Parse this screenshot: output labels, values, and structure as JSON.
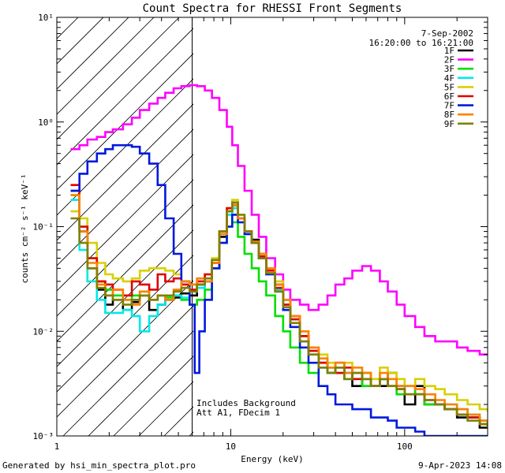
{
  "chart_data": {
    "type": "line",
    "step": true,
    "title": "Count Spectra for RHESSI Front Segments",
    "xlabel": "Energy (keV)",
    "ylabel": "counts cm⁻² s⁻¹ keV⁻¹",
    "xscale": "log",
    "yscale": "log",
    "xlim": [
      1,
      300
    ],
    "ylim": [
      0.001,
      10
    ],
    "x_ticks": [
      {
        "value": 1,
        "label": "1"
      },
      {
        "value": 10,
        "label": "10"
      },
      {
        "value": 100,
        "label": "100"
      }
    ],
    "y_ticks": [
      {
        "value": 10,
        "label": "10¹"
      },
      {
        "value": 1,
        "label": "10⁰"
      },
      {
        "value": 0.1,
        "label": "10⁻¹"
      },
      {
        "value": 0.01,
        "label": "10⁻²"
      },
      {
        "value": 0.001,
        "label": "10⁻³"
      }
    ],
    "date": "7-Sep-2002",
    "time_range": "16:20:00 to 16:21:00",
    "shaded_below_keV": 6,
    "annotations": [
      "Includes Background",
      "Att A1, FDecim  1"
    ],
    "series": [
      {
        "name": "1F",
        "color": "#000000",
        "x": [
          1.2,
          1.35,
          1.5,
          1.7,
          1.9,
          2.1,
          2.4,
          2.7,
          3.0,
          3.4,
          3.8,
          4.2,
          4.7,
          5.2,
          5.8,
          6.4,
          7.1,
          7.8,
          8.6,
          9.5,
          10.2,
          11.0,
          12.0,
          13.2,
          14.5,
          16,
          18,
          20,
          22,
          25,
          28,
          32,
          36,
          40,
          45,
          50,
          57,
          64,
          72,
          80,
          90,
          100,
          115,
          130,
          150,
          170,
          200,
          230,
          270,
          300
        ],
        "y": [
          0.22,
          0.09,
          0.04,
          0.025,
          0.018,
          0.02,
          0.016,
          0.019,
          0.022,
          0.016,
          0.018,
          0.02,
          0.021,
          0.023,
          0.022,
          0.028,
          0.03,
          0.04,
          0.08,
          0.14,
          0.17,
          0.12,
          0.09,
          0.075,
          0.055,
          0.04,
          0.028,
          0.02,
          0.014,
          0.009,
          0.007,
          0.005,
          0.004,
          0.005,
          0.004,
          0.003,
          0.004,
          0.003,
          0.003,
          0.004,
          0.003,
          0.002,
          0.003,
          0.002,
          0.002,
          0.0018,
          0.0015,
          0.0015,
          0.0012,
          0.0012
        ]
      },
      {
        "name": "2F",
        "color": "#ff00ff",
        "x": [
          1.2,
          1.35,
          1.5,
          1.7,
          1.9,
          2.1,
          2.4,
          2.7,
          3.0,
          3.4,
          3.8,
          4.2,
          4.7,
          5.2,
          5.8,
          6.4,
          7.1,
          7.8,
          8.6,
          9.5,
          10.2,
          11.0,
          12.0,
          13.2,
          14.5,
          16,
          18,
          20,
          22,
          25,
          28,
          32,
          36,
          40,
          45,
          50,
          57,
          64,
          72,
          80,
          90,
          100,
          115,
          130,
          150,
          170,
          200,
          230,
          270,
          300
        ],
        "y": [
          0.55,
          0.6,
          0.68,
          0.72,
          0.8,
          0.85,
          0.95,
          1.1,
          1.3,
          1.5,
          1.7,
          1.9,
          2.1,
          2.2,
          2.25,
          2.2,
          2.0,
          1.7,
          1.3,
          0.9,
          0.6,
          0.38,
          0.22,
          0.13,
          0.08,
          0.05,
          0.035,
          0.025,
          0.02,
          0.018,
          0.016,
          0.018,
          0.022,
          0.028,
          0.032,
          0.038,
          0.042,
          0.038,
          0.03,
          0.024,
          0.018,
          0.014,
          0.011,
          0.009,
          0.008,
          0.008,
          0.007,
          0.0065,
          0.006,
          0.006
        ]
      },
      {
        "name": "3F",
        "color": "#00e000",
        "x": [
          1.2,
          1.35,
          1.5,
          1.7,
          1.9,
          2.1,
          2.4,
          2.7,
          3.0,
          3.4,
          3.8,
          4.2,
          4.7,
          5.2,
          5.8,
          6.4,
          7.1,
          7.8,
          8.6,
          9.5,
          10.2,
          11.0,
          12.0,
          13.2,
          14.5,
          16,
          18,
          20,
          22,
          25,
          28,
          32,
          36,
          40,
          45,
          50,
          57,
          64,
          72,
          80,
          90,
          100,
          115,
          130,
          150,
          170,
          200,
          230,
          270,
          300
        ],
        "y": [
          0.2,
          0.1,
          0.05,
          0.03,
          0.025,
          0.022,
          0.02,
          0.022,
          0.024,
          0.02,
          0.022,
          0.021,
          0.022,
          0.02,
          0.018,
          0.02,
          0.025,
          0.04,
          0.07,
          0.1,
          0.11,
          0.08,
          0.055,
          0.04,
          0.03,
          0.022,
          0.014,
          0.01,
          0.007,
          0.005,
          0.004,
          0.0045,
          0.004,
          0.004,
          0.0035,
          0.004,
          0.003,
          0.003,
          0.0035,
          0.003,
          0.0025,
          0.003,
          0.0025,
          0.002,
          0.002,
          0.0018,
          0.0016,
          0.0015,
          0.0013,
          0.0013
        ]
      },
      {
        "name": "4F",
        "color": "#00e8e8",
        "x": [
          1.2,
          1.35,
          1.5,
          1.7,
          1.9,
          2.1,
          2.4,
          2.7,
          3.0,
          3.4,
          3.8,
          4.2,
          4.7,
          5.2,
          5.8,
          6.4,
          7.1,
          7.8,
          8.6,
          9.5,
          10.2,
          11.0,
          12.0,
          13.2,
          14.5,
          16,
          18,
          20,
          22,
          25,
          28,
          32,
          36,
          40,
          45,
          50,
          57,
          64,
          72,
          80,
          90,
          100,
          115,
          130,
          150,
          170,
          200,
          230,
          270,
          300
        ],
        "y": [
          0.18,
          0.06,
          0.03,
          0.02,
          0.015,
          0.015,
          0.016,
          0.014,
          0.01,
          0.014,
          0.018,
          0.02,
          0.022,
          0.021,
          0.024,
          0.026,
          0.03,
          0.045,
          0.085,
          0.13,
          0.15,
          0.11,
          0.085,
          0.07,
          0.05,
          0.035,
          0.025,
          0.018,
          0.013,
          0.008,
          0.006,
          0.005,
          0.004,
          0.0045,
          0.004,
          0.0035,
          0.004,
          0.003,
          0.0035,
          0.003,
          0.003,
          0.0025,
          0.0025,
          0.0022,
          0.002,
          0.002,
          0.0018,
          0.0016,
          0.0014,
          0.0013
        ]
      },
      {
        "name": "5F",
        "color": "#d8d000",
        "x": [
          1.2,
          1.35,
          1.5,
          1.7,
          1.9,
          2.1,
          2.4,
          2.7,
          3.0,
          3.4,
          3.8,
          4.2,
          4.7,
          5.2,
          5.8,
          6.4,
          7.1,
          7.8,
          8.6,
          9.5,
          10.2,
          11.0,
          12.0,
          13.2,
          14.5,
          16,
          18,
          20,
          22,
          25,
          28,
          32,
          36,
          40,
          45,
          50,
          57,
          64,
          72,
          80,
          90,
          100,
          115,
          130,
          150,
          170,
          200,
          230,
          270,
          300
        ],
        "y": [
          0.14,
          0.12,
          0.07,
          0.045,
          0.035,
          0.032,
          0.03,
          0.032,
          0.038,
          0.04,
          0.04,
          0.038,
          0.035,
          0.03,
          0.028,
          0.032,
          0.035,
          0.05,
          0.09,
          0.15,
          0.18,
          0.12,
          0.09,
          0.07,
          0.055,
          0.04,
          0.03,
          0.02,
          0.014,
          0.01,
          0.007,
          0.006,
          0.005,
          0.0045,
          0.005,
          0.004,
          0.004,
          0.0035,
          0.0045,
          0.004,
          0.0035,
          0.003,
          0.0035,
          0.003,
          0.0028,
          0.0025,
          0.0022,
          0.002,
          0.0018,
          0.0017
        ]
      },
      {
        "name": "6F",
        "color": "#e00000",
        "x": [
          1.2,
          1.35,
          1.5,
          1.7,
          1.9,
          2.1,
          2.4,
          2.7,
          3.0,
          3.4,
          3.8,
          4.2,
          4.7,
          5.2,
          5.8,
          6.4,
          7.1,
          7.8,
          8.6,
          9.5,
          10.2,
          11.0,
          12.0,
          13.2,
          14.5,
          16,
          18,
          20,
          22,
          25,
          28,
          32,
          36,
          40,
          45,
          50,
          57,
          64,
          72,
          80,
          90,
          100,
          115,
          130,
          150,
          170,
          200,
          230,
          270,
          300
        ],
        "y": [
          0.25,
          0.1,
          0.05,
          0.03,
          0.028,
          0.025,
          0.022,
          0.03,
          0.028,
          0.025,
          0.035,
          0.03,
          0.032,
          0.028,
          0.025,
          0.03,
          0.035,
          0.045,
          0.09,
          0.15,
          0.16,
          0.12,
          0.09,
          0.07,
          0.052,
          0.038,
          0.026,
          0.018,
          0.013,
          0.009,
          0.0065,
          0.005,
          0.0045,
          0.004,
          0.0045,
          0.0035,
          0.0035,
          0.003,
          0.0035,
          0.003,
          0.0028,
          0.0025,
          0.0025,
          0.0022,
          0.002,
          0.0018,
          0.0016,
          0.0015,
          0.0013,
          0.0012
        ]
      },
      {
        "name": "7F",
        "color": "#0018e0",
        "x": [
          1.2,
          1.35,
          1.5,
          1.7,
          1.9,
          2.1,
          2.4,
          2.7,
          3.0,
          3.4,
          3.8,
          4.2,
          4.7,
          5.2,
          5.8,
          6.2,
          6.6,
          7.1,
          7.8,
          8.6,
          9.5,
          10.2,
          11.0,
          12.0,
          13.2,
          14.5,
          16,
          18,
          20,
          22,
          25,
          28,
          32,
          36,
          40,
          45,
          50,
          57,
          64,
          72,
          80,
          90,
          100,
          115,
          130,
          150,
          170,
          200,
          230,
          270,
          300
        ],
        "y": [
          0.22,
          0.32,
          0.42,
          0.5,
          0.55,
          0.6,
          0.6,
          0.58,
          0.5,
          0.4,
          0.25,
          0.12,
          0.055,
          0.03,
          0.018,
          0.004,
          0.01,
          0.02,
          0.04,
          0.07,
          0.1,
          0.13,
          0.11,
          0.085,
          0.07,
          0.05,
          0.035,
          0.024,
          0.016,
          0.011,
          0.007,
          0.005,
          0.003,
          0.0025,
          0.002,
          0.002,
          0.0018,
          0.0018,
          0.0015,
          0.0015,
          0.0014,
          0.0012,
          0.0012,
          0.0011,
          0.001,
          0.001,
          0.001,
          0.001,
          0.001,
          0.001,
          0.001
        ]
      },
      {
        "name": "8F",
        "color": "#ff8000",
        "x": [
          1.2,
          1.35,
          1.5,
          1.7,
          1.9,
          2.1,
          2.4,
          2.7,
          3.0,
          3.4,
          3.8,
          4.2,
          4.7,
          5.2,
          5.8,
          6.4,
          7.1,
          7.8,
          8.6,
          9.5,
          10.2,
          11.0,
          12.0,
          13.2,
          14.5,
          16,
          18,
          20,
          22,
          25,
          28,
          32,
          36,
          40,
          45,
          50,
          57,
          64,
          72,
          80,
          90,
          100,
          115,
          130,
          150,
          170,
          200,
          230,
          270,
          300
        ],
        "y": [
          0.2,
          0.09,
          0.045,
          0.028,
          0.022,
          0.025,
          0.02,
          0.018,
          0.024,
          0.02,
          0.022,
          0.02,
          0.025,
          0.03,
          0.028,
          0.032,
          0.03,
          0.045,
          0.085,
          0.14,
          0.16,
          0.12,
          0.09,
          0.072,
          0.055,
          0.04,
          0.028,
          0.02,
          0.014,
          0.01,
          0.007,
          0.0055,
          0.0045,
          0.005,
          0.004,
          0.0045,
          0.004,
          0.003,
          0.004,
          0.0035,
          0.003,
          0.003,
          0.0028,
          0.0025,
          0.0022,
          0.002,
          0.0018,
          0.0016,
          0.0014,
          0.0013
        ]
      },
      {
        "name": "9F",
        "color": "#808000",
        "x": [
          1.2,
          1.35,
          1.5,
          1.7,
          1.9,
          2.1,
          2.4,
          2.7,
          3.0,
          3.4,
          3.8,
          4.2,
          4.7,
          5.2,
          5.8,
          6.4,
          7.1,
          7.8,
          8.6,
          9.5,
          10.2,
          11.0,
          12.0,
          13.2,
          14.5,
          16,
          18,
          20,
          22,
          25,
          28,
          32,
          36,
          40,
          45,
          50,
          57,
          64,
          72,
          80,
          90,
          100,
          115,
          130,
          150,
          170,
          200,
          230,
          270,
          300
        ],
        "y": [
          0.12,
          0.07,
          0.04,
          0.026,
          0.022,
          0.02,
          0.018,
          0.02,
          0.022,
          0.02,
          0.022,
          0.022,
          0.024,
          0.026,
          0.024,
          0.028,
          0.032,
          0.048,
          0.09,
          0.14,
          0.17,
          0.13,
          0.09,
          0.07,
          0.05,
          0.036,
          0.024,
          0.017,
          0.012,
          0.008,
          0.006,
          0.0045,
          0.004,
          0.0045,
          0.0035,
          0.004,
          0.0035,
          0.003,
          0.0035,
          0.003,
          0.0028,
          0.0025,
          0.0025,
          0.0022,
          0.002,
          0.0018,
          0.0016,
          0.0014,
          0.0013,
          0.0012
        ]
      }
    ]
  },
  "footer": {
    "generated_by": "Generated by hsi_min_spectra_plot.pro",
    "timestamp": "9-Apr-2023 14:08"
  }
}
